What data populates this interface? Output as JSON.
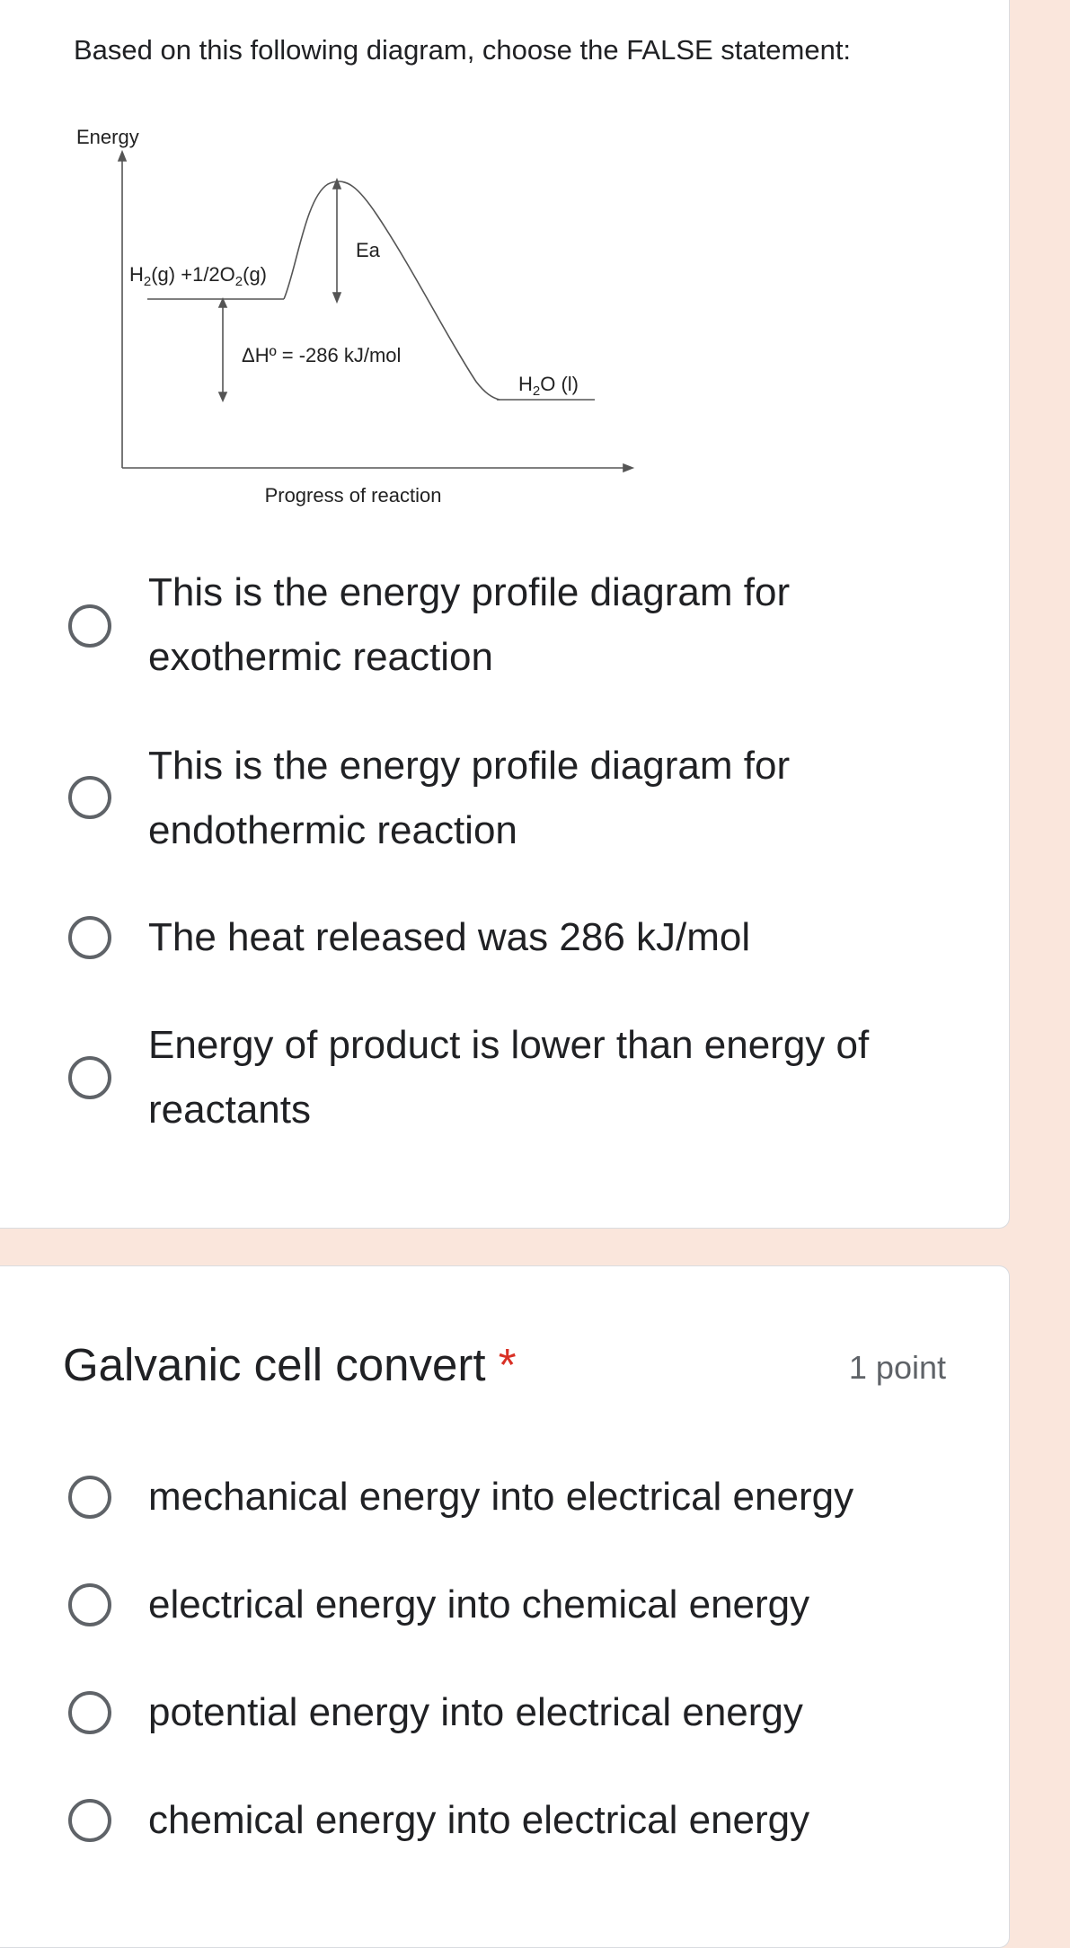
{
  "question1": {
    "prompt": "Based on this following diagram, choose the FALSE statement:",
    "diagram": {
      "y_axis_label": "Energy",
      "x_axis_label": "Progress of reaction",
      "reactants": [
        "H",
        "2",
        "(g) +1/2O",
        "2",
        "(g)"
      ],
      "activation_label": "Ea",
      "enthalpy_label": "ΔHº = -286 kJ/mol",
      "product": [
        "H",
        "2",
        "O (l)"
      ]
    },
    "options": [
      "This is the energy profile diagram for exothermic reaction",
      "This is the energy profile diagram for endothermic reaction",
      "The heat released was 286 kJ/mol",
      "Energy of product is lower than energy of reactants"
    ]
  },
  "question2": {
    "title": "Galvanic cell convert",
    "required_mark": "*",
    "points": "1 point",
    "options": [
      "mechanical energy into electrical energy",
      "electrical energy into chemical energy",
      "potential energy into electrical energy",
      "chemical energy into electrical energy"
    ]
  }
}
